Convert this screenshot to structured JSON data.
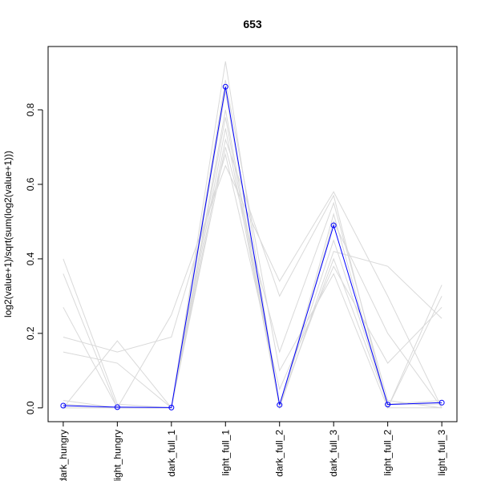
{
  "chart_data": {
    "type": "line",
    "title": "653",
    "y_label": "log2(value+1)/sqrt(sum(log2(value+1)))",
    "categories": [
      "dark_hungry",
      "light_hungry",
      "dark_full_1",
      "light_full_1",
      "dark_full_2",
      "dark_full_3",
      "light_full_2",
      "light_full_3"
    ],
    "ylim": [
      -0.037,
      0.97
    ],
    "yticks": [
      {
        "value": 0,
        "label": "0.0"
      },
      0.2,
      0.4,
      0.6,
      0.8
    ],
    "series": [
      {
        "color": "#d9d9d9",
        "values": [
          0.01,
          0.0,
          0.0,
          0.8,
          0.01,
          0.45,
          0.01,
          0.01
        ]
      },
      {
        "color": "#d9d9d9",
        "values": [
          0.4,
          0.01,
          0.0,
          0.75,
          0.01,
          0.4,
          0.01,
          0.02
        ]
      },
      {
        "color": "#d9d9d9",
        "values": [
          0.0,
          0.18,
          0.0,
          0.7,
          0.15,
          0.55,
          0.02,
          0.0
        ]
      },
      {
        "color": "#d9d9d9",
        "values": [
          0.02,
          0.0,
          0.25,
          0.65,
          0.34,
          0.58,
          0.3,
          0.0
        ]
      },
      {
        "color": "#d9d9d9",
        "values": [
          0.0,
          0.0,
          0.0,
          0.93,
          0.0,
          0.52,
          0.0,
          0.33
        ]
      },
      {
        "color": "#d9d9d9",
        "values": [
          0.27,
          0.0,
          0.0,
          0.85,
          0.0,
          0.5,
          0.2,
          0.0
        ]
      },
      {
        "color": "#d9d9d9",
        "values": [
          0.15,
          0.12,
          0.0,
          0.78,
          0.0,
          0.42,
          0.38,
          0.24
        ]
      },
      {
        "color": "#d9d9d9",
        "values": [
          0.0,
          0.0,
          0.0,
          0.88,
          0.1,
          0.36,
          0.0,
          0.3
        ]
      },
      {
        "color": "#d9d9d9",
        "values": [
          0.36,
          0.0,
          0.0,
          0.72,
          0.3,
          0.57,
          0.0,
          0.0
        ]
      },
      {
        "color": "#d9d9d9",
        "values": [
          0.19,
          0.15,
          0.19,
          0.68,
          0.05,
          0.38,
          0.12,
          0.27
        ]
      },
      {
        "color": "#0000ff",
        "values": [
          0.006,
          0.002,
          0.001,
          0.862,
          0.008,
          0.49,
          0.009,
          0.014
        ],
        "markers": true
      }
    ]
  }
}
